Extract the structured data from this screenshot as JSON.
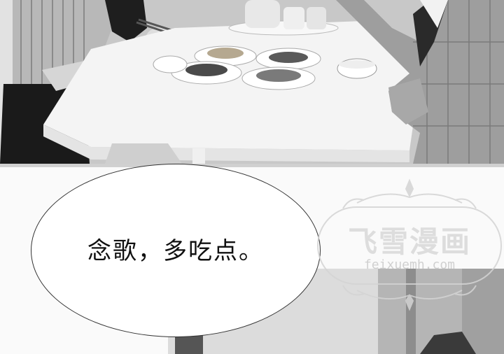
{
  "speech_bubble": {
    "text": "念歌，多吃点。"
  },
  "watermark": {
    "title": "飞雪漫画",
    "url": "feixuemh.com"
  }
}
